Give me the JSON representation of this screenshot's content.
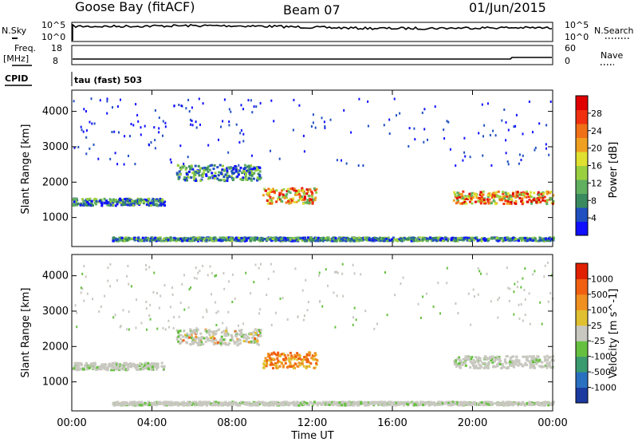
{
  "header": {
    "station": "Goose Bay (fitACF)",
    "beam": "Beam 07",
    "date": "01/Jun/2015"
  },
  "top_panels": {
    "nsky_label": "N.Sky",
    "nsky_ticks": [
      "10^5",
      "10^0"
    ],
    "nsearch_label": "N.Search",
    "nsearch_ticks": [
      "10^5",
      "10^0"
    ],
    "freq_label": "Freq.",
    "freq_unit": "[MHz]",
    "freq_ticks": [
      "18",
      "8"
    ],
    "nave_label": "Nave",
    "nave_ticks": [
      "60",
      "0"
    ],
    "cpid_label": "CPID",
    "cpid_value": "tau (fast) 503"
  },
  "chart_data": [
    {
      "type": "heatmap",
      "name": "power-panel",
      "ylabel": "Slant Range [km]",
      "yticks": [
        "1000",
        "2000",
        "3000",
        "4000"
      ],
      "ylim": [
        180,
        4600
      ],
      "xlim_hours": [
        0,
        24
      ],
      "colorbar": {
        "label": "Power [dB]",
        "ticks": [
          "4",
          "8",
          "12",
          "16",
          "20",
          "24",
          "28"
        ],
        "colors": [
          "#1010ff",
          "#2050c0",
          "#3a8a60",
          "#60b060",
          "#9ad040",
          "#e0e030",
          "#f0a020",
          "#f07018",
          "#f03010",
          "#e00000"
        ]
      },
      "echo_bands_km": [
        {
          "t0": 0,
          "t1": 4.6,
          "r0": 1300,
          "r1": 1500
        },
        {
          "t0": 5.2,
          "t1": 9.4,
          "r0": 2000,
          "r1": 2450
        },
        {
          "t0": 9.5,
          "t1": 12.2,
          "r0": 1350,
          "r1": 1800
        },
        {
          "t0": 19,
          "t1": 24,
          "r0": 1350,
          "r1": 1700
        },
        {
          "t0": 2,
          "t1": 24,
          "r0": 300,
          "r1": 400
        }
      ]
    },
    {
      "type": "heatmap",
      "name": "velocity-panel",
      "ylabel": "Slant Range [km]",
      "yticks": [
        "1000",
        "2000",
        "3000",
        "4000"
      ],
      "ylim": [
        180,
        4600
      ],
      "xlabel": "Time UT",
      "xticks": [
        "00:00",
        "04:00",
        "08:00",
        "12:00",
        "16:00",
        "20:00",
        "00:00"
      ],
      "xlim_hours": [
        0,
        24
      ],
      "colorbar": {
        "label": "Velocity [m s^-1]",
        "ticks": [
          "1000",
          "500",
          "100",
          "25",
          "-25",
          "-100",
          "-500",
          "-1000"
        ],
        "colors": [
          "#1a3aa0",
          "#2a70c0",
          "#3a9a70",
          "#66c040",
          "#c8c8c0",
          "#e0c030",
          "#f09020",
          "#f06010",
          "#e02000"
        ]
      }
    }
  ]
}
